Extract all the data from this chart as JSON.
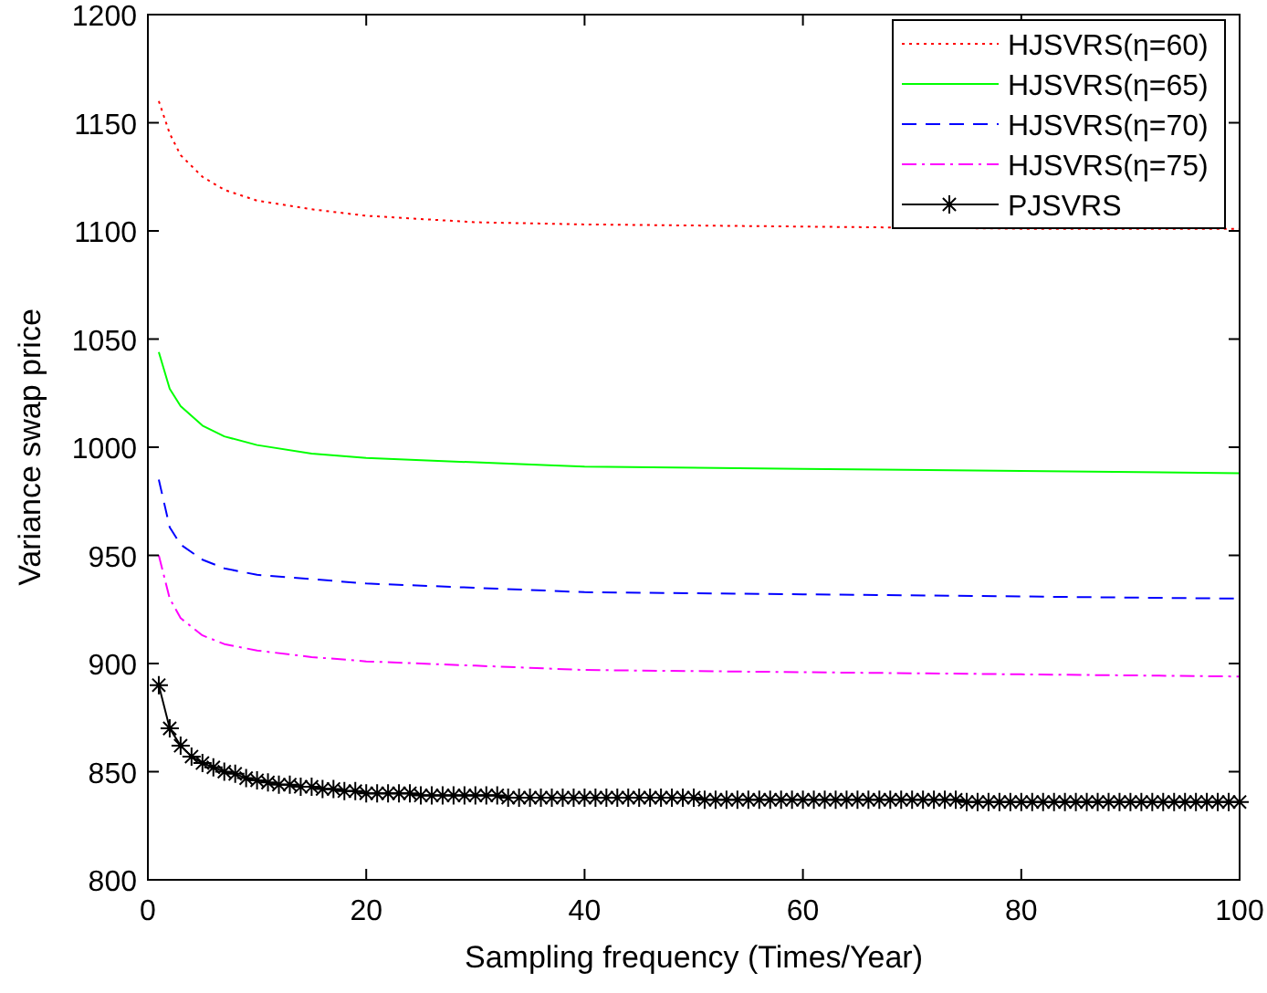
{
  "chart_data": {
    "type": "line",
    "xlabel": "Sampling frequency (Times/Year)",
    "ylabel": "Variance swap price",
    "xlim": [
      0,
      100
    ],
    "ylim": [
      800,
      1200
    ],
    "xticks": [
      0,
      20,
      40,
      60,
      80,
      100
    ],
    "yticks": [
      800,
      850,
      900,
      950,
      1000,
      1050,
      1100,
      1150,
      1200
    ],
    "grid": false,
    "legend": "top right",
    "series": [
      {
        "name": "HJSVRS(η=60)",
        "color": "#ff0000",
        "line_style": "dotted",
        "marker": "none",
        "x": [
          1,
          2,
          3,
          5,
          7,
          10,
          15,
          20,
          30,
          40,
          60,
          80,
          100
        ],
        "values": [
          1160,
          1145,
          1135,
          1125,
          1119,
          1114,
          1110,
          1107,
          1104,
          1103,
          1102,
          1101,
          1101
        ]
      },
      {
        "name": "HJSVRS(η=65)",
        "color": "#00ff00",
        "line_style": "solid",
        "marker": "none",
        "x": [
          1,
          2,
          3,
          5,
          7,
          10,
          15,
          20,
          30,
          40,
          60,
          80,
          100
        ],
        "values": [
          1044,
          1027,
          1019,
          1010,
          1005,
          1001,
          997,
          995,
          993,
          991,
          990,
          989,
          988
        ]
      },
      {
        "name": "HJSVRS(η=70)",
        "color": "#0000ff",
        "line_style": "dashed",
        "marker": "none",
        "x": [
          1,
          2,
          3,
          5,
          7,
          10,
          15,
          20,
          30,
          40,
          60,
          80,
          100
        ],
        "values": [
          985,
          963,
          955,
          948,
          944,
          941,
          939,
          937,
          935,
          933,
          932,
          931,
          930
        ]
      },
      {
        "name": "HJSVRS(η=75)",
        "color": "#ff00ff",
        "line_style": "dashdot",
        "marker": "none",
        "x": [
          1,
          2,
          3,
          5,
          7,
          10,
          15,
          20,
          30,
          40,
          60,
          80,
          100
        ],
        "values": [
          950,
          930,
          921,
          913,
          909,
          906,
          903,
          901,
          899,
          897,
          896,
          895,
          894
        ]
      },
      {
        "name": "PJSVRS",
        "color": "#000000",
        "line_style": "solid",
        "marker": "cross",
        "x": [
          1,
          2,
          3,
          4,
          5,
          6,
          7,
          8,
          9,
          10,
          11,
          12,
          13,
          14,
          15,
          16,
          17,
          18,
          19,
          20,
          21,
          22,
          23,
          24,
          25,
          26,
          27,
          28,
          29,
          30,
          31,
          32,
          33,
          34,
          35,
          36,
          37,
          38,
          39,
          40,
          41,
          42,
          43,
          44,
          45,
          46,
          47,
          48,
          49,
          50,
          51,
          52,
          53,
          54,
          55,
          56,
          57,
          58,
          59,
          60,
          61,
          62,
          63,
          64,
          65,
          66,
          67,
          68,
          69,
          70,
          71,
          72,
          73,
          74,
          75,
          76,
          77,
          78,
          79,
          80,
          81,
          82,
          83,
          84,
          85,
          86,
          87,
          88,
          89,
          90,
          91,
          92,
          93,
          94,
          95,
          96,
          97,
          98,
          99,
          100
        ],
        "values": [
          890,
          870,
          862,
          857,
          854,
          852,
          850,
          849,
          847,
          846,
          845,
          844,
          844,
          843,
          843,
          842,
          842,
          841,
          841,
          840,
          840,
          840,
          840,
          840,
          839,
          839,
          839,
          839,
          839,
          839,
          839,
          839,
          838,
          838,
          838,
          838,
          838,
          838,
          838,
          838,
          838,
          838,
          838,
          838,
          838,
          838,
          838,
          838,
          838,
          838,
          837,
          837,
          837,
          837,
          837,
          837,
          837,
          837,
          837,
          837,
          837,
          837,
          837,
          837,
          837,
          837,
          837,
          837,
          837,
          837,
          837,
          837,
          837,
          837,
          836,
          836,
          836,
          836,
          836,
          836,
          836,
          836,
          836,
          836,
          836,
          836,
          836,
          836,
          836,
          836,
          836,
          836,
          836,
          836,
          836,
          836,
          836,
          836,
          836,
          836
        ]
      }
    ]
  }
}
